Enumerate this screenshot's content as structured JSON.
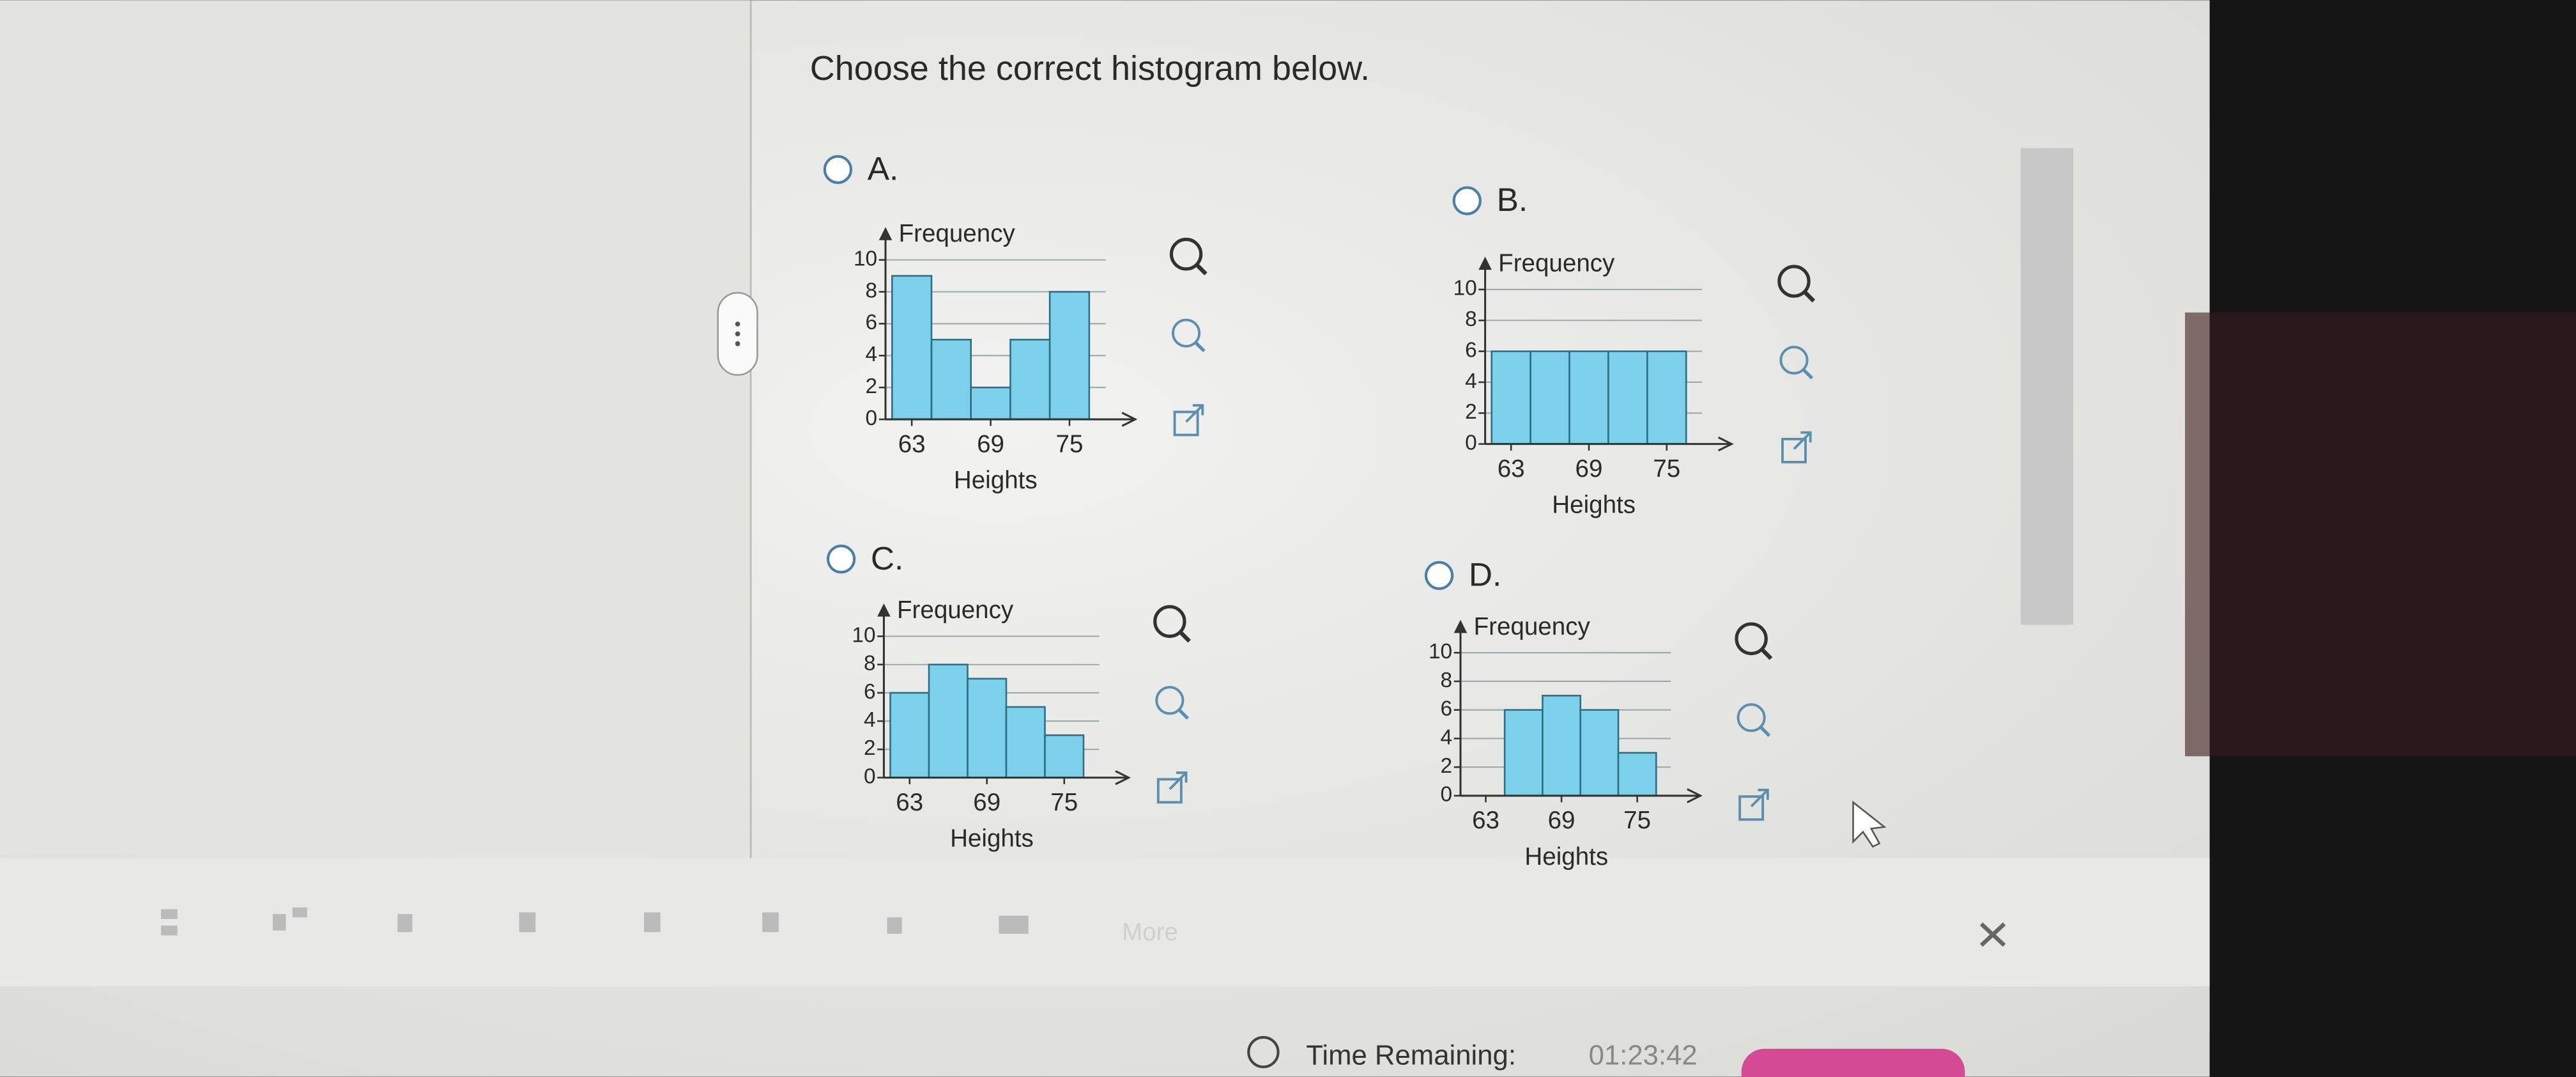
{
  "question": "Choose the correct histogram below.",
  "options": [
    {
      "label": "A.",
      "chart": {
        "type": "histogram",
        "y_label": "Frequency",
        "x_label": "Heights",
        "color": "#7dd0ea",
        "bins": [
          61.5,
          64.5,
          67.5,
          70.5,
          73.5,
          76.5
        ],
        "values": [
          9,
          5,
          2,
          5,
          8
        ],
        "xlim": [
          61,
          80
        ],
        "ylim": [
          0,
          10
        ],
        "xticks": [
          63,
          69,
          75
        ],
        "yticks": [
          0,
          2,
          4,
          6,
          8,
          10
        ],
        "grid": true
      }
    },
    {
      "label": "B.",
      "chart": {
        "type": "histogram",
        "y_label": "Frequency",
        "x_label": "Heights",
        "color": "#7dd0ea",
        "bins": [
          61.5,
          64.5,
          67.5,
          70.5,
          73.5,
          76.5
        ],
        "values": [
          6,
          6,
          6,
          6,
          6
        ],
        "xlim": [
          61,
          80
        ],
        "ylim": [
          0,
          10
        ],
        "xticks": [
          63,
          69,
          75
        ],
        "yticks": [
          0,
          2,
          4,
          6,
          8,
          10
        ],
        "grid": true
      }
    },
    {
      "label": "C.",
      "chart": {
        "type": "histogram",
        "y_label": "Frequency",
        "x_label": "Heights",
        "color": "#7dd0ea",
        "bins": [
          61.5,
          64.5,
          67.5,
          70.5,
          73.5,
          76.5
        ],
        "values": [
          6,
          8,
          7,
          5,
          3
        ],
        "xlim": [
          61,
          80
        ],
        "ylim": [
          0,
          10
        ],
        "xticks": [
          63,
          69,
          75
        ],
        "yticks": [
          0,
          2,
          4,
          6,
          8,
          10
        ],
        "grid": true
      }
    },
    {
      "label": "D.",
      "chart": {
        "type": "histogram",
        "y_label": "Frequency",
        "x_label": "Heights",
        "color": "#7dd0ea",
        "bins": [
          64.5,
          67.5,
          70.5,
          73.5,
          76.5
        ],
        "values": [
          6,
          7,
          6,
          3
        ],
        "xlim": [
          61,
          80
        ],
        "ylim": [
          0,
          10
        ],
        "xticks": [
          63,
          69,
          75
        ],
        "yticks": [
          0,
          2,
          4,
          6,
          8,
          10
        ],
        "grid": true
      }
    }
  ],
  "toolbar": {
    "more": "More"
  },
  "timer": {
    "label": "Time Remaining:",
    "value": "01:23:42"
  }
}
